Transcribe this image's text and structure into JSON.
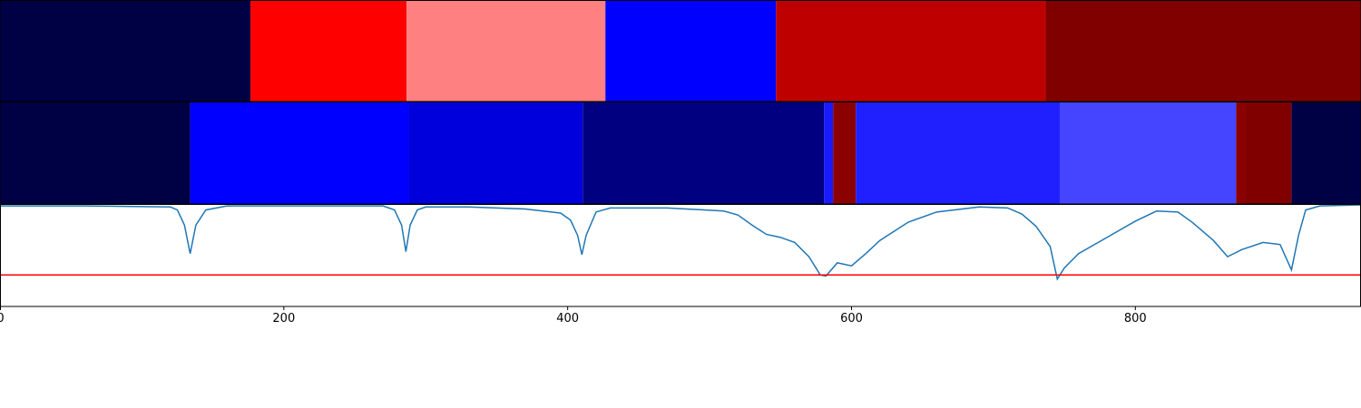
{
  "chart_data": {
    "type": "line",
    "xlim": [
      0,
      959
    ],
    "xticks": [
      0,
      200,
      400,
      600,
      800
    ],
    "ylim": [
      0,
      1
    ],
    "bands": [
      {
        "edges": [
          0,
          176.5,
          286.5,
          426.6,
          546.8,
          736.8,
          959
        ],
        "colors": [
          "#000045",
          "#ff0000",
          "#ff8080",
          "#0000ff",
          "#bf0000",
          "#800000"
        ]
      },
      {
        "edges": [
          0,
          134,
          288,
          410.6,
          580.7,
          587,
          603,
          747,
          871,
          877.5,
          910,
          959
        ],
        "colors": [
          "#000045",
          "#0000ff",
          "#0000dd",
          "#000080",
          "#1a1aff",
          "#8b0000",
          "#2020ff",
          "#4545ff",
          "#8b0000",
          "#800000",
          "#000045"
        ]
      }
    ],
    "line": {
      "color": "#1f77b4",
      "x": [
        0,
        60,
        120,
        125,
        130,
        134,
        138,
        145,
        160,
        270,
        278,
        283,
        286,
        289,
        294,
        300,
        330,
        370,
        395,
        402,
        407,
        410,
        413,
        420,
        430,
        470,
        510,
        520,
        530,
        540,
        550,
        560,
        570,
        578,
        582,
        590,
        600,
        610,
        620,
        640,
        660,
        690,
        710,
        720,
        730,
        740,
        745,
        750,
        760,
        780,
        800,
        815,
        830,
        840,
        855,
        865,
        875,
        890,
        902,
        910,
        915,
        920,
        930,
        959
      ],
      "values": [
        0.99,
        0.99,
        0.98,
        0.95,
        0.8,
        0.52,
        0.8,
        0.95,
        0.99,
        0.99,
        0.95,
        0.8,
        0.54,
        0.8,
        0.95,
        0.98,
        0.98,
        0.96,
        0.92,
        0.85,
        0.7,
        0.51,
        0.7,
        0.93,
        0.97,
        0.97,
        0.94,
        0.9,
        0.8,
        0.71,
        0.68,
        0.63,
        0.49,
        0.31,
        0.3,
        0.43,
        0.4,
        0.52,
        0.65,
        0.83,
        0.93,
        0.98,
        0.97,
        0.91,
        0.79,
        0.59,
        0.27,
        0.38,
        0.52,
        0.68,
        0.84,
        0.94,
        0.93,
        0.83,
        0.65,
        0.49,
        0.56,
        0.63,
        0.61,
        0.36,
        0.7,
        0.95,
        0.99,
        1.0
      ]
    },
    "threshold": {
      "value": 0.31,
      "color": "#ff0000"
    }
  }
}
